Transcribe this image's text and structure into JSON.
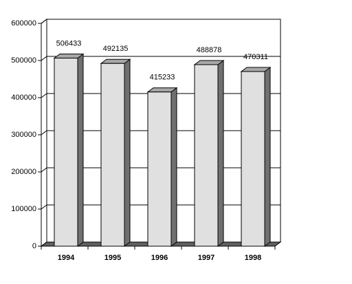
{
  "chart_data": {
    "type": "bar",
    "categories": [
      "1994",
      "1995",
      "1996",
      "1997",
      "1998"
    ],
    "values": [
      506433,
      492135,
      415233,
      488878,
      470311
    ],
    "color": "#e0e0e0",
    "ylim": [
      0,
      600000
    ],
    "yticks": [
      0,
      100000,
      200000,
      300000,
      400000,
      500000,
      600000
    ],
    "grid": true
  }
}
